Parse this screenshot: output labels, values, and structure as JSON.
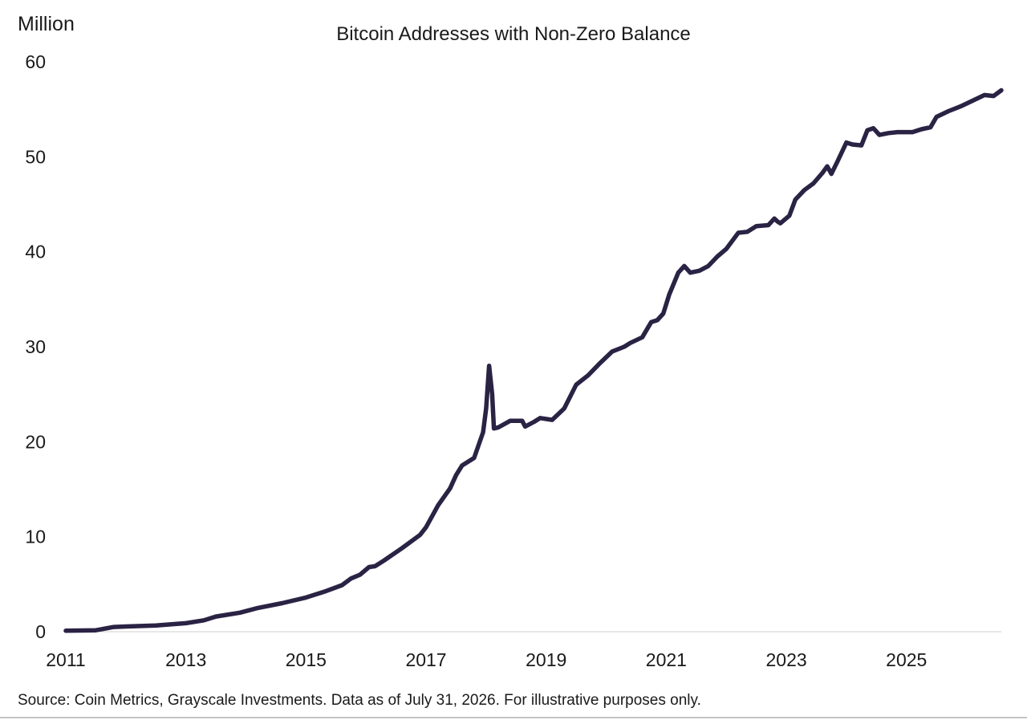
{
  "chart_data": {
    "type": "line",
    "title": "Bitcoin Addresses with Non-Zero Balance",
    "y_unit_label": "Million",
    "ylim": [
      0,
      60
    ],
    "xlim": [
      2011.0,
      2026.58
    ],
    "y_ticks": [
      "0",
      "10",
      "20",
      "30",
      "40",
      "50",
      "60"
    ],
    "x_ticks": [
      "2011",
      "2013",
      "2015",
      "2017",
      "2019",
      "2021",
      "2023",
      "2025"
    ],
    "grid": false,
    "legend": "none",
    "line_color": "#2a2344",
    "x": [
      2011.0,
      2011.5,
      2011.8,
      2012.0,
      2012.5,
      2013.0,
      2013.3,
      2013.5,
      2013.9,
      2014.2,
      2014.6,
      2015.0,
      2015.3,
      2015.6,
      2015.75,
      2015.9,
      2016.05,
      2016.15,
      2016.3,
      2016.6,
      2016.9,
      2017.0,
      2017.2,
      2017.4,
      2017.5,
      2017.6,
      2017.8,
      2017.95,
      2018.0,
      2018.05,
      2018.1,
      2018.13,
      2018.2,
      2018.4,
      2018.6,
      2018.65,
      2018.8,
      2018.9,
      2019.1,
      2019.3,
      2019.5,
      2019.7,
      2019.9,
      2020.1,
      2020.3,
      2020.4,
      2020.6,
      2020.75,
      2020.85,
      2020.95,
      2021.05,
      2021.2,
      2021.3,
      2021.4,
      2021.55,
      2021.7,
      2021.85,
      2022.0,
      2022.2,
      2022.35,
      2022.5,
      2022.7,
      2022.8,
      2022.85,
      2022.9,
      2023.05,
      2023.15,
      2023.3,
      2023.45,
      2023.6,
      2023.68,
      2023.75,
      2023.85,
      2024.0,
      2024.1,
      2024.25,
      2024.35,
      2024.45,
      2024.55,
      2024.7,
      2024.85,
      2025.0,
      2025.1,
      2025.25,
      2025.4,
      2025.5,
      2025.7,
      2025.9,
      2026.1,
      2026.3,
      2026.45,
      2026.58
    ],
    "values": [
      0.1,
      0.15,
      0.5,
      0.55,
      0.65,
      0.9,
      1.2,
      1.6,
      2.0,
      2.5,
      3.0,
      3.6,
      4.2,
      4.9,
      5.6,
      6.0,
      6.8,
      6.9,
      7.5,
      8.8,
      10.2,
      11.0,
      13.3,
      15.1,
      16.5,
      17.5,
      18.3,
      21.0,
      23.5,
      28.0,
      25.0,
      21.4,
      21.5,
      22.2,
      22.2,
      21.6,
      22.1,
      22.5,
      22.3,
      23.5,
      26.0,
      27.0,
      28.3,
      29.5,
      30.0,
      30.4,
      31.0,
      32.6,
      32.8,
      33.5,
      35.5,
      37.8,
      38.5,
      37.8,
      38.0,
      38.5,
      39.5,
      40.3,
      42.0,
      42.1,
      42.7,
      42.8,
      43.5,
      43.2,
      43.0,
      43.8,
      45.5,
      46.5,
      47.2,
      48.3,
      49.0,
      48.2,
      49.5,
      51.5,
      51.3,
      51.2,
      52.8,
      53.0,
      52.3,
      52.5,
      52.6,
      52.6,
      52.6,
      52.9,
      53.1,
      54.2,
      54.8,
      55.3,
      55.9,
      56.5,
      56.4,
      57.0
    ]
  },
  "source_note": "Source: Coin Metrics, Grayscale Investments. Data as of July 31, 2026. For illustrative purposes only."
}
